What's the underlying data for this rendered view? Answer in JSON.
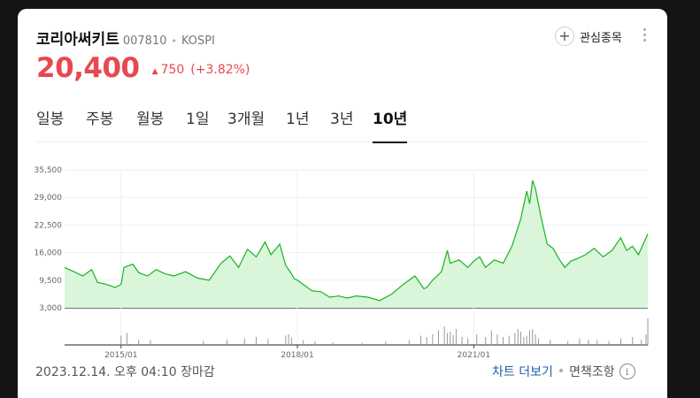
{
  "header": {
    "stock_name": "코리아써키트",
    "stock_code": "007810",
    "separator": "•",
    "market": "KOSPI",
    "watch_label": "관심종목",
    "watch_icon": "plus-icon",
    "more_icon": "more-vertical-icon"
  },
  "price": {
    "value": "20,400",
    "change": "750",
    "change_pct": "(+3.82%)",
    "direction": "up",
    "color": "#e8484f"
  },
  "tabs": [
    {
      "label": "일봉",
      "active": false
    },
    {
      "label": "주봉",
      "active": false
    },
    {
      "label": "월봉",
      "active": false
    },
    {
      "label": "1일",
      "active": false
    },
    {
      "label": "3개월",
      "active": false
    },
    {
      "label": "1년",
      "active": false
    },
    {
      "label": "3년",
      "active": false
    },
    {
      "label": "10년",
      "active": true
    }
  ],
  "chart_data": {
    "type": "area",
    "color": "#19b31f",
    "fill": "#d9f5da",
    "ylim": [
      3000,
      35500
    ],
    "yticks": [
      "35,500",
      "29,000",
      "22,500",
      "16,000",
      "9,500",
      "3,000"
    ],
    "ytick_values": [
      35500,
      29000,
      22500,
      16000,
      9500,
      3000
    ],
    "xticks": [
      "2015/01",
      "2018/01",
      "2021/01"
    ],
    "xtick_values": [
      2015.0,
      2018.0,
      2021.0
    ],
    "xlim": [
      2014.04,
      2023.96
    ],
    "grid": true,
    "series": [
      {
        "x": [
          2014.04,
          2014.2,
          2014.35,
          2014.5,
          2014.6,
          2014.75,
          2014.9,
          2015.0,
          2015.05,
          2015.2,
          2015.3,
          2015.45,
          2015.6,
          2015.75,
          2015.9,
          2016.1,
          2016.3,
          2016.5,
          2016.7,
          2016.85,
          2017.0,
          2017.15,
          2017.3,
          2017.45,
          2017.55,
          2017.7,
          2017.8,
          2017.9,
          2017.95,
          2018.0,
          2018.1,
          2018.25,
          2018.4,
          2018.55,
          2018.7,
          2018.85,
          2019.0,
          2019.2,
          2019.4,
          2019.6,
          2019.8,
          2020.0,
          2020.15,
          2020.2,
          2020.3,
          2020.45,
          2020.55,
          2020.6,
          2020.75,
          2020.9,
          2021.0,
          2021.1,
          2021.2,
          2021.35,
          2021.5,
          2021.65,
          2021.8,
          2021.9,
          2021.95,
          2022.0,
          2022.05,
          2022.15,
          2022.25,
          2022.35,
          2022.45,
          2022.55,
          2022.65,
          2022.75,
          2022.9,
          2023.05,
          2023.2,
          2023.35,
          2023.5,
          2023.6,
          2023.7,
          2023.8,
          2023.96
        ],
        "y": [
          12500,
          11500,
          10500,
          12000,
          9000,
          8500,
          7800,
          8500,
          12500,
          13300,
          11300,
          10500,
          12000,
          11000,
          10500,
          11500,
          10000,
          9500,
          13500,
          15200,
          12500,
          16800,
          15000,
          18500,
          15500,
          18000,
          13000,
          11000,
          9800,
          9500,
          8500,
          7000,
          6800,
          5500,
          5800,
          5300,
          5800,
          5500,
          4700,
          6200,
          8500,
          10500,
          7500,
          7800,
          9500,
          11500,
          16500,
          13500,
          14300,
          12500,
          14000,
          15000,
          12500,
          14300,
          13500,
          17500,
          24000,
          30500,
          27500,
          33000,
          31000,
          24000,
          18000,
          17000,
          14500,
          12500,
          14000,
          14500,
          15500,
          17000,
          15000,
          16500,
          19500,
          16500,
          17500,
          15500,
          20400
        ]
      }
    ],
    "volume": {
      "x": [
        2015.0,
        2015.1,
        2015.3,
        2015.5,
        2016.4,
        2016.8,
        2017.1,
        2017.3,
        2017.5,
        2017.8,
        2017.85,
        2017.9,
        2018.1,
        2018.3,
        2018.6,
        2019.1,
        2019.5,
        2019.9,
        2020.1,
        2020.2,
        2020.3,
        2020.4,
        2020.5,
        2020.55,
        2020.6,
        2020.65,
        2020.7,
        2020.8,
        2020.9,
        2021.05,
        2021.2,
        2021.3,
        2021.4,
        2021.5,
        2021.6,
        2021.7,
        2021.75,
        2021.8,
        2021.85,
        2021.9,
        2021.95,
        2022.0,
        2022.05,
        2022.1,
        2022.3,
        2022.6,
        2022.8,
        2022.95,
        2023.1,
        2023.3,
        2023.5,
        2023.7,
        2023.85,
        2023.93,
        2023.96
      ],
      "v": [
        35,
        45,
        20,
        18,
        15,
        20,
        25,
        30,
        22,
        35,
        40,
        28,
        18,
        14,
        10,
        8,
        12,
        18,
        35,
        30,
        40,
        55,
        70,
        45,
        50,
        38,
        60,
        30,
        25,
        40,
        30,
        55,
        40,
        30,
        35,
        45,
        60,
        50,
        30,
        35,
        55,
        60,
        40,
        25,
        20,
        15,
        25,
        20,
        18,
        15,
        25,
        30,
        20,
        40,
        100
      ]
    }
  },
  "footer": {
    "timestamp": "2023.12.14. 오후 04:10 장마감",
    "more_chart_label": "차트 더보기",
    "separator": "•",
    "disclaimer_label": "면책조항",
    "info_icon": "info-icon"
  }
}
